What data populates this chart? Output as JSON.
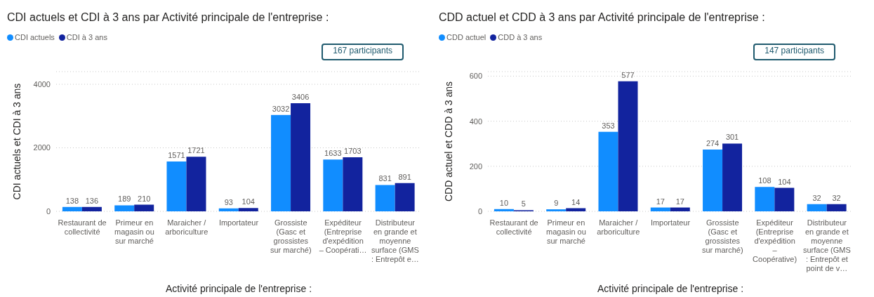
{
  "chart_data": [
    {
      "type": "bar",
      "title": "CDI actuels et CDI à 3 ans par Activité principale de l'entreprise :",
      "xlabel": "Activité principale de l'entreprise :",
      "ylabel": "CDI actuels et CDI à 3 ans",
      "categories": [
        "Restaurant de collectivité",
        "Primeur en magasin ou sur marché",
        "Maraicher / arboriculture",
        "Importateur",
        "Grossiste (Gasc et grossistes sur marché)",
        "Expéditeur (Entreprise d'expédition – Coopérati…",
        "Distributeur en grande et moyenne surface (GMS : Entrepôt e…"
      ],
      "series": [
        {
          "name": "CDI actuels",
          "color": "#118dff",
          "values": [
            138,
            189,
            1571,
            93,
            3032,
            1633,
            831
          ]
        },
        {
          "name": "CDI à 3 ans",
          "color": "#12239e",
          "values": [
            136,
            210,
            1721,
            104,
            3406,
            1703,
            891
          ]
        }
      ],
      "ylim": [
        0,
        4400
      ],
      "yticks": [
        0,
        2000,
        4000
      ],
      "grid": "y",
      "legend": "top left",
      "data_labels": true,
      "annotations": [
        "167 participants"
      ]
    },
    {
      "type": "bar",
      "title": "CDD actuel et CDD à 3 ans par Activité principale de l'entreprise :",
      "xlabel": "Activité principale de l'entreprise :",
      "ylabel": "CDD actuel et CDD à 3 ans",
      "categories": [
        "Restaurant de collectivité",
        "Primeur en magasin ou sur marché",
        "Maraicher / arboriculture",
        "Importateur",
        "Grossiste (Gasc et grossistes sur marché)",
        "Expéditeur (Entreprise d'expédition – Coopérative)",
        "Distributeur en grande et moyenne surface (GMS : Entrepôt et point de v…"
      ],
      "series": [
        {
          "name": "CDD actuel",
          "color": "#118dff",
          "values": [
            10,
            9,
            353,
            17,
            274,
            108,
            32
          ]
        },
        {
          "name": "CDD à 3 ans",
          "color": "#12239e",
          "values": [
            5,
            14,
            577,
            17,
            301,
            104,
            32
          ]
        }
      ],
      "ylim": [
        0,
        620
      ],
      "yticks": [
        0,
        200,
        400,
        600
      ],
      "grid": "y",
      "legend": "top left",
      "data_labels": true,
      "annotations": [
        "147 participants"
      ]
    }
  ]
}
